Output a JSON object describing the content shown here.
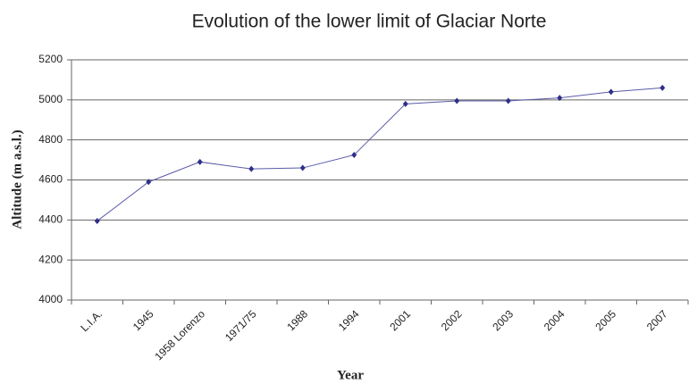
{
  "chart_data": {
    "type": "line",
    "title": "Evolution of the lower limit of Glaciar Norte",
    "x_label": "Year",
    "y_label": "Altitude (m a.s.l.)",
    "categories": [
      "L.I.A.",
      "1945",
      "1958 Lorenzo",
      "1971/75",
      "1988",
      "1994",
      "2001",
      "2002",
      "2003",
      "2004",
      "2005",
      "2007"
    ],
    "values": [
      4395,
      4590,
      4690,
      4655,
      4660,
      4725,
      4980,
      4995,
      4995,
      5010,
      5040,
      5060
    ],
    "color": "#2f2f8a",
    "ylim": [
      4000,
      5200
    ],
    "yticks": [
      4000,
      4200,
      4400,
      4600,
      4800,
      5000,
      5200
    ],
    "grid": true
  }
}
